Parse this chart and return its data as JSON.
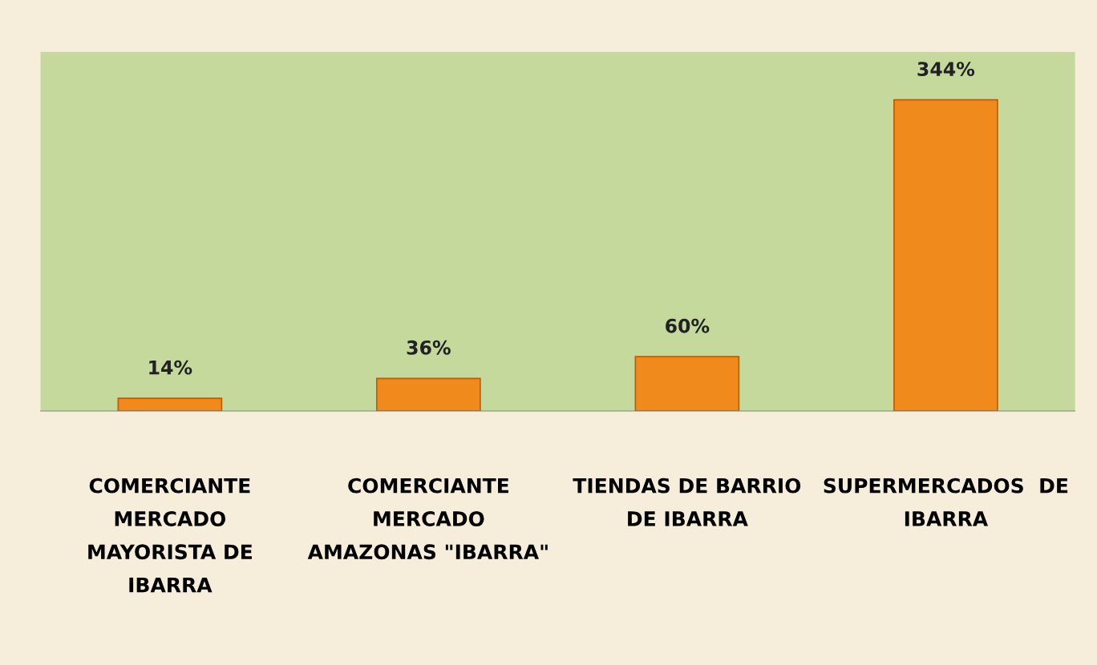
{
  "chart_data": {
    "type": "bar",
    "categories": [
      "COMERCIANTE\nMERCADO\nMAYORISTA DE\nIBARRA",
      "COMERCIANTE\nMERCADO\nAMAZONAS \"IBARRA\"",
      "TIENDAS DE BARRIO\nDE IBARRA",
      "SUPERMERCADOS  DE\nIBARRA"
    ],
    "values": [
      14,
      36,
      60,
      344
    ],
    "value_labels": [
      "14%",
      "36%",
      "60%",
      "344%"
    ],
    "color": "#f08a1c",
    "ylim": [
      0,
      397
    ],
    "tick_labels": "x",
    "grid": false,
    "legend": false
  }
}
